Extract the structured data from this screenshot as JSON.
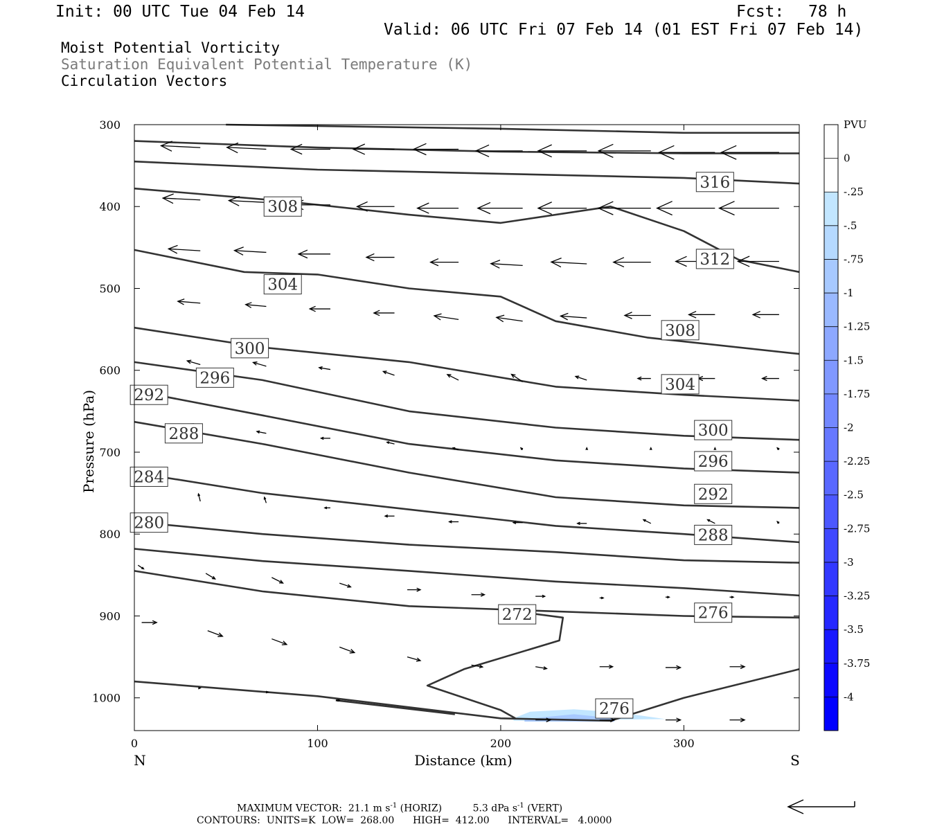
{
  "header": {
    "init": "Init: 00 UTC Tue 04 Feb 14",
    "fcst_label": "Fcst:",
    "fcst_value": "78 h",
    "valid": "Valid: 06 UTC Fri 07 Feb 14 (01 EST Fri 07 Feb 14)"
  },
  "fields": {
    "line1": "Moist Potential Vorticity",
    "line2": "Saturation Equivalent Potential Temperature (K)",
    "line3": "Circulation Vectors",
    "line2_color": "#7a7a7a"
  },
  "footer": {
    "max_vector_label": "MAXIMUM VECTOR:",
    "horiz_value": "21.1 m s",
    "horiz_unit": "(HORIZ)",
    "vert_value": "5.3 dPa s",
    "vert_unit": "(VERT)",
    "exponent": "-1",
    "contours_label": "CONTOURS:",
    "units": "UNITS=K",
    "low_label": "LOW=",
    "low_value": "268.00",
    "high_label": "HIGH=",
    "high_value": "412.00",
    "interval_label": "INTERVAL=",
    "interval_value": "4.0000"
  },
  "chart_data": {
    "type": "line",
    "xlabel": "Distance (km)",
    "ylabel": "Pressure (hPa)",
    "xlim": [
      0,
      363
    ],
    "ylim": [
      300,
      1040
    ],
    "x_ticks": [
      0,
      100,
      200,
      300
    ],
    "y_ticks": [
      300,
      400,
      500,
      600,
      700,
      800,
      900,
      1000
    ],
    "left_end_label": "N",
    "right_end_label": "S",
    "colorbar": {
      "title": "PVU",
      "labels": [
        "0",
        "-.25",
        "-.5",
        "-.75",
        "-1",
        "-1.25",
        "-1.5",
        "-1.75",
        "-2",
        "-2.25",
        "-2.5",
        "-2.75",
        "-3",
        "-3.25",
        "-3.5",
        "-3.75",
        "-4"
      ],
      "colors": [
        "#ffffff",
        "#ffffff",
        "#c2e6ff",
        "#b5d9ff",
        "#a7c9ff",
        "#9ab9ff",
        "#8da8ff",
        "#8098ff",
        "#7388ff",
        "#6678ff",
        "#5968ff",
        "#4c58ff",
        "#3f48ff",
        "#3238ff",
        "#2528ff",
        "#1818ff",
        "#0b08ff",
        "#0000ff"
      ]
    },
    "contours": [
      {
        "level": 316,
        "points": [
          [
            50,
            300
          ],
          [
            200,
            305
          ],
          [
            300,
            310
          ],
          [
            363,
            310
          ]
        ]
      },
      {
        "level": 316,
        "points": [
          [
            0,
            320
          ],
          [
            100,
            328
          ],
          [
            200,
            333
          ],
          [
            300,
            335
          ],
          [
            363,
            335
          ]
        ]
      },
      {
        "level": 316,
        "points": [
          [
            0,
            345
          ],
          [
            100,
            355
          ],
          [
            200,
            360
          ],
          [
            300,
            365
          ],
          [
            363,
            372
          ]
        ]
      },
      {
        "level": 312,
        "points": [
          [
            0,
            378
          ],
          [
            80,
            393
          ],
          [
            150,
            410
          ],
          [
            200,
            420
          ],
          [
            260,
            400
          ],
          [
            300,
            430
          ],
          [
            330,
            465
          ],
          [
            363,
            480
          ]
        ]
      },
      {
        "level": 308,
        "points": [
          [
            0,
            453
          ],
          [
            60,
            480
          ],
          [
            100,
            483
          ],
          [
            150,
            500
          ],
          [
            200,
            510
          ],
          [
            230,
            540
          ],
          [
            280,
            560
          ],
          [
            363,
            580
          ]
        ]
      },
      {
        "level": 304,
        "points": [
          [
            0,
            548
          ],
          [
            70,
            572
          ],
          [
            150,
            590
          ],
          [
            230,
            620
          ],
          [
            300,
            630
          ],
          [
            363,
            637
          ]
        ]
      },
      {
        "level": 300,
        "points": [
          [
            0,
            590
          ],
          [
            70,
            612
          ],
          [
            150,
            650
          ],
          [
            230,
            670
          ],
          [
            300,
            680
          ],
          [
            363,
            685
          ]
        ]
      },
      {
        "level": 296,
        "points": [
          [
            0,
            625
          ],
          [
            70,
            655
          ],
          [
            150,
            690
          ],
          [
            230,
            710
          ],
          [
            300,
            720
          ],
          [
            363,
            725
          ]
        ]
      },
      {
        "level": 292,
        "points": [
          [
            0,
            663
          ],
          [
            70,
            690
          ],
          [
            150,
            725
          ],
          [
            230,
            755
          ],
          [
            300,
            765
          ],
          [
            363,
            768
          ]
        ]
      },
      {
        "level": 288,
        "points": [
          [
            0,
            725
          ],
          [
            70,
            750
          ],
          [
            150,
            770
          ],
          [
            230,
            790
          ],
          [
            300,
            800
          ],
          [
            363,
            810
          ]
        ]
      },
      {
        "level": 284,
        "points": [
          [
            0,
            785
          ],
          [
            70,
            800
          ],
          [
            150,
            813
          ],
          [
            230,
            822
          ],
          [
            300,
            832
          ],
          [
            363,
            835
          ]
        ]
      },
      {
        "level": 280,
        "points": [
          [
            0,
            818
          ],
          [
            70,
            833
          ],
          [
            150,
            845
          ],
          [
            230,
            858
          ],
          [
            300,
            866
          ],
          [
            363,
            875
          ]
        ]
      },
      {
        "level": 276,
        "points": [
          [
            0,
            845
          ],
          [
            70,
            870
          ],
          [
            150,
            888
          ],
          [
            200,
            892
          ],
          [
            300,
            900
          ],
          [
            363,
            902
          ]
        ]
      },
      {
        "level": 272,
        "points": [
          [
            200,
            892
          ],
          [
            234,
            902
          ],
          [
            232,
            930
          ],
          [
            180,
            965
          ],
          [
            160,
            985
          ],
          [
            200,
            1015
          ],
          [
            208,
            1025
          ]
        ]
      },
      {
        "level": 276,
        "points": [
          [
            0,
            980
          ],
          [
            100,
            998
          ],
          [
            200,
            1025
          ],
          [
            260,
            1028
          ],
          [
            300,
            1000
          ],
          [
            363,
            965
          ]
        ]
      },
      {
        "level": 276,
        "points": [
          [
            110,
            1003
          ],
          [
            175,
            1020
          ]
        ]
      }
    ],
    "contour_labels": [
      {
        "text": "316",
        "x": 317,
        "p": 370
      },
      {
        "text": "308",
        "x": 81,
        "p": 400
      },
      {
        "text": "312",
        "x": 317,
        "p": 464
      },
      {
        "text": "304",
        "x": 81,
        "p": 495
      },
      {
        "text": "308",
        "x": 298,
        "p": 551
      },
      {
        "text": "300",
        "x": 63,
        "p": 573
      },
      {
        "text": "296",
        "x": 44,
        "p": 609
      },
      {
        "text": "304",
        "x": 298,
        "p": 617
      },
      {
        "text": "292",
        "x": 8,
        "p": 630
      },
      {
        "text": "288",
        "x": 27,
        "p": 677
      },
      {
        "text": "300",
        "x": 316,
        "p": 673
      },
      {
        "text": "296",
        "x": 316,
        "p": 711
      },
      {
        "text": "284",
        "x": 8,
        "p": 730
      },
      {
        "text": "292",
        "x": 316,
        "p": 751
      },
      {
        "text": "280",
        "x": 8,
        "p": 786
      },
      {
        "text": "288",
        "x": 316,
        "p": 801
      },
      {
        "text": "272",
        "x": 209,
        "p": 898
      },
      {
        "text": "276",
        "x": 316,
        "p": 896
      },
      {
        "text": "276",
        "x": 262,
        "p": 1013
      }
    ],
    "pv_shading": {
      "light": [
        [
          207,
          1025
        ],
        [
          216,
          1017
        ],
        [
          240,
          1014
        ],
        [
          265,
          1018
        ],
        [
          290,
          1026
        ],
        [
          207,
          1028
        ]
      ],
      "dark": [
        [
          213,
          1026
        ],
        [
          240,
          1020
        ],
        [
          262,
          1025
        ],
        [
          262,
          1029
        ],
        [
          213,
          1029
        ]
      ]
    },
    "vectors": [
      {
        "x": 36,
        "p": 328,
        "u": -21,
        "w": -1
      },
      {
        "x": 72,
        "p": 330,
        "u": -21,
        "w": -1
      },
      {
        "x": 107,
        "p": 330,
        "u": -21,
        "w": 0
      },
      {
        "x": 142,
        "p": 330,
        "u": -22,
        "w": 0
      },
      {
        "x": 177,
        "p": 330,
        "u": -24,
        "w": 0
      },
      {
        "x": 212,
        "p": 332,
        "u": -25,
        "w": 0
      },
      {
        "x": 247,
        "p": 332,
        "u": -26,
        "w": 0
      },
      {
        "x": 282,
        "p": 332,
        "u": -28,
        "w": 0
      },
      {
        "x": 317,
        "p": 334,
        "u": -30,
        "w": 0
      },
      {
        "x": 352,
        "p": 334,
        "u": -31,
        "w": 0
      },
      {
        "x": 36,
        "p": 392,
        "u": -20,
        "w": -1
      },
      {
        "x": 72,
        "p": 395,
        "u": -20,
        "w": -1
      },
      {
        "x": 107,
        "p": 398,
        "u": -20,
        "w": 0
      },
      {
        "x": 142,
        "p": 400,
        "u": -20,
        "w": 0
      },
      {
        "x": 177,
        "p": 402,
        "u": -22,
        "w": 0
      },
      {
        "x": 212,
        "p": 402,
        "u": -24,
        "w": 0
      },
      {
        "x": 247,
        "p": 402,
        "u": -26,
        "w": 0
      },
      {
        "x": 282,
        "p": 402,
        "u": -28,
        "w": 0
      },
      {
        "x": 317,
        "p": 402,
        "u": -31,
        "w": 0
      },
      {
        "x": 352,
        "p": 402,
        "u": -32,
        "w": 0
      },
      {
        "x": 36,
        "p": 454,
        "u": -17,
        "w": -1
      },
      {
        "x": 72,
        "p": 456,
        "u": -17,
        "w": -1
      },
      {
        "x": 107,
        "p": 458,
        "u": -17,
        "w": 0
      },
      {
        "x": 142,
        "p": 462,
        "u": -15,
        "w": 0
      },
      {
        "x": 177,
        "p": 468,
        "u": -15,
        "w": 0
      },
      {
        "x": 212,
        "p": 472,
        "u": -17,
        "w": -1
      },
      {
        "x": 247,
        "p": 470,
        "u": -19,
        "w": -1
      },
      {
        "x": 282,
        "p": 468,
        "u": -20,
        "w": 0
      },
      {
        "x": 317,
        "p": 467,
        "u": -21,
        "w": 0
      },
      {
        "x": 352,
        "p": 467,
        "u": -22,
        "w": 0
      },
      {
        "x": 36,
        "p": 518,
        "u": -12,
        "w": -1
      },
      {
        "x": 72,
        "p": 522,
        "u": -11,
        "w": -1
      },
      {
        "x": 107,
        "p": 525,
        "u": -11,
        "w": 0
      },
      {
        "x": 142,
        "p": 530,
        "u": -11,
        "w": 0
      },
      {
        "x": 177,
        "p": 538,
        "u": -13,
        "w": -2
      },
      {
        "x": 212,
        "p": 540,
        "u": -14,
        "w": -2
      },
      {
        "x": 247,
        "p": 536,
        "u": -14,
        "w": -1
      },
      {
        "x": 282,
        "p": 533,
        "u": -14,
        "w": 0
      },
      {
        "x": 317,
        "p": 532,
        "u": -14,
        "w": 0
      },
      {
        "x": 352,
        "p": 532,
        "u": -14,
        "w": 0
      },
      {
        "x": 36,
        "p": 593,
        "u": -7,
        "w": -2
      },
      {
        "x": 72,
        "p": 595,
        "u": -7,
        "w": -2
      },
      {
        "x": 107,
        "p": 599,
        "u": -6,
        "w": -1
      },
      {
        "x": 142,
        "p": 606,
        "u": -6,
        "w": -2
      },
      {
        "x": 177,
        "p": 612,
        "u": -6,
        "w": -3
      },
      {
        "x": 212,
        "p": 614,
        "u": -6,
        "w": -4
      },
      {
        "x": 247,
        "p": 612,
        "u": -6,
        "w": -2
      },
      {
        "x": 282,
        "p": 610,
        "u": -7,
        "w": 0
      },
      {
        "x": 317,
        "p": 610,
        "u": -9,
        "w": 0
      },
      {
        "x": 352,
        "p": 610,
        "u": -9,
        "w": 0
      },
      {
        "x": 36,
        "p": 670,
        "u": -5,
        "w": -2
      },
      {
        "x": 72,
        "p": 677,
        "u": -5,
        "w": -1
      },
      {
        "x": 107,
        "p": 683,
        "u": -5,
        "w": 0
      },
      {
        "x": 142,
        "p": 690,
        "u": -4,
        "w": -1
      },
      {
        "x": 177,
        "p": 697,
        "u": -3,
        "w": -1
      },
      {
        "x": 212,
        "p": 697,
        "u": -1,
        "w": -1
      },
      {
        "x": 247,
        "p": 697,
        "u": 0,
        "w": -1
      },
      {
        "x": 282,
        "p": 697,
        "u": 0,
        "w": -1
      },
      {
        "x": 317,
        "p": 697,
        "u": 0,
        "w": -1
      },
      {
        "x": 352,
        "p": 697,
        "u": -1,
        "w": -1
      },
      {
        "x": 36,
        "p": 760,
        "u": -1,
        "w": -4
      },
      {
        "x": 72,
        "p": 762,
        "u": -1,
        "w": -3
      },
      {
        "x": 107,
        "p": 768,
        "u": -3,
        "w": 0
      },
      {
        "x": 142,
        "p": 778,
        "u": -5,
        "w": 0
      },
      {
        "x": 177,
        "p": 785,
        "u": -5,
        "w": 0
      },
      {
        "x": 212,
        "p": 786,
        "u": -5,
        "w": 0
      },
      {
        "x": 247,
        "p": 787,
        "u": -5,
        "w": 0
      },
      {
        "x": 282,
        "p": 787,
        "u": -4,
        "w": -2
      },
      {
        "x": 317,
        "p": 787,
        "u": -4,
        "w": -2
      },
      {
        "x": 352,
        "p": 787,
        "u": -1,
        "w": -1
      },
      {
        "x": 2,
        "p": 838,
        "u": 3,
        "w": 2
      },
      {
        "x": 39,
        "p": 848,
        "u": 5,
        "w": 3
      },
      {
        "x": 75,
        "p": 853,
        "u": 6,
        "w": 3
      },
      {
        "x": 112,
        "p": 860,
        "u": 6,
        "w": 2
      },
      {
        "x": 149,
        "p": 868,
        "u": 7,
        "w": 0
      },
      {
        "x": 184,
        "p": 874,
        "u": 7,
        "w": 0
      },
      {
        "x": 219,
        "p": 876,
        "u": 5,
        "w": 0
      },
      {
        "x": 254,
        "p": 878,
        "u": 2,
        "w": 0
      },
      {
        "x": 290,
        "p": 877,
        "u": 2,
        "w": 0
      },
      {
        "x": 325,
        "p": 877,
        "u": 2,
        "w": 0
      },
      {
        "x": 4,
        "p": 908,
        "u": 8,
        "w": 0
      },
      {
        "x": 40,
        "p": 918,
        "u": 8,
        "w": 3
      },
      {
        "x": 75,
        "p": 928,
        "u": 8,
        "w": 3
      },
      {
        "x": 112,
        "p": 938,
        "u": 8,
        "w": 3
      },
      {
        "x": 149,
        "p": 950,
        "u": 7,
        "w": 2
      },
      {
        "x": 184,
        "p": 960,
        "u": 6,
        "w": 1
      },
      {
        "x": 219,
        "p": 962,
        "u": 6,
        "w": 1
      },
      {
        "x": 254,
        "p": 962,
        "u": 7,
        "w": 0
      },
      {
        "x": 290,
        "p": 963,
        "u": 8,
        "w": 0
      },
      {
        "x": 325,
        "p": 962,
        "u": 8,
        "w": 0
      },
      {
        "x": 35,
        "p": 988,
        "u": 1,
        "w": 0
      },
      {
        "x": 72,
        "p": 993,
        "u": 1,
        "w": 0
      },
      {
        "x": 110,
        "p": 1003,
        "u": 2,
        "w": 0
      },
      {
        "x": 219,
        "p": 1027,
        "u": 8,
        "w": 0
      },
      {
        "x": 254,
        "p": 1027,
        "u": 8,
        "w": 0
      },
      {
        "x": 290,
        "p": 1027,
        "u": 8,
        "w": 0
      },
      {
        "x": 325,
        "p": 1027,
        "u": 8,
        "w": 0
      }
    ]
  }
}
